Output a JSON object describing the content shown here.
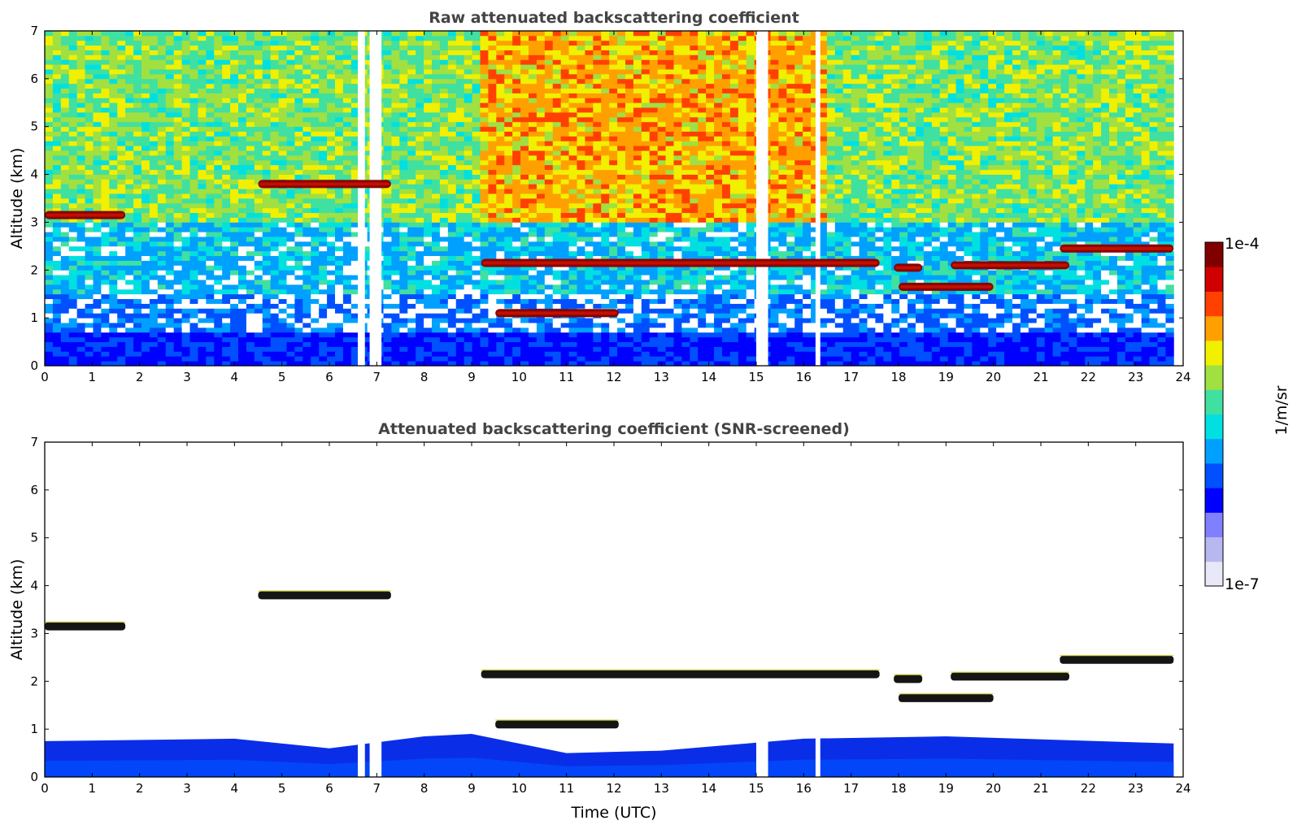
{
  "chart_data": [
    {
      "type": "heatmap",
      "title": "Raw attenuated backscattering coefficient",
      "xlabel": "",
      "ylabel": "Altitude (km)",
      "xlim": [
        0,
        24
      ],
      "ylim": [
        0,
        7
      ],
      "xticks": [
        "0",
        "1",
        "2",
        "3",
        "4",
        "5",
        "6",
        "7",
        "8",
        "9",
        "10",
        "11",
        "12",
        "13",
        "14",
        "15",
        "16",
        "17",
        "18",
        "19",
        "20",
        "21",
        "22",
        "23",
        "24"
      ],
      "yticks": [
        "0",
        "1",
        "2",
        "3",
        "4",
        "5",
        "6",
        "7"
      ],
      "data_end_hour": 23.8,
      "missing_time_gaps_hours": [
        [
          6.6,
          6.75
        ],
        [
          6.85,
          7.1
        ],
        [
          15.0,
          15.25
        ],
        [
          16.25,
          16.35
        ]
      ],
      "background_by_altitude": [
        {
          "alt_range_km": [
            0,
            0.7
          ],
          "level": "low",
          "color_class": "blue"
        },
        {
          "alt_range_km": [
            0.7,
            3.0
          ],
          "level": "low-medium",
          "color_class": "light blue / cyan"
        },
        {
          "alt_range_km": [
            3.0,
            7.0
          ],
          "level": "medium",
          "color_class": "green / yellow (noisy)"
        }
      ],
      "high_noise_period_hours": [
        9.2,
        16.5
      ],
      "cloud_layers": [
        {
          "t_start": 0.0,
          "t_end": 1.7,
          "alt_km": 3.15
        },
        {
          "t_start": 4.5,
          "t_end": 7.3,
          "alt_km": 3.8
        },
        {
          "t_start": 9.2,
          "t_end": 17.6,
          "alt_km": 2.15
        },
        {
          "t_start": 9.5,
          "t_end": 12.1,
          "alt_km": 1.1
        },
        {
          "t_start": 17.9,
          "t_end": 18.5,
          "alt_km": 2.05
        },
        {
          "t_start": 18.0,
          "t_end": 20.0,
          "alt_km": 1.65
        },
        {
          "t_start": 19.1,
          "t_end": 21.6,
          "alt_km": 2.1
        },
        {
          "t_start": 21.4,
          "t_end": 23.8,
          "alt_km": 2.45
        }
      ]
    },
    {
      "type": "heatmap",
      "title": "Attenuated backscattering coefficient (SNR-screened)",
      "xlabel": "Time (UTC)",
      "ylabel": "Altitude (km)",
      "xlim": [
        0,
        24
      ],
      "ylim": [
        0,
        7
      ],
      "xticks": [
        "0",
        "1",
        "2",
        "3",
        "4",
        "5",
        "6",
        "7",
        "8",
        "9",
        "10",
        "11",
        "12",
        "13",
        "14",
        "15",
        "16",
        "17",
        "18",
        "19",
        "20",
        "21",
        "22",
        "23",
        "24"
      ],
      "yticks": [
        "0",
        "1",
        "2",
        "3",
        "4",
        "5",
        "6",
        "7"
      ],
      "data_end_hour": 23.8,
      "boundary_layer_top_km": [
        {
          "t": 0,
          "alt": 0.75
        },
        {
          "t": 4,
          "alt": 0.8
        },
        {
          "t": 6,
          "alt": 0.6
        },
        {
          "t": 8,
          "alt": 0.85
        },
        {
          "t": 9,
          "alt": 0.9
        },
        {
          "t": 11,
          "alt": 0.5
        },
        {
          "t": 13,
          "alt": 0.55
        },
        {
          "t": 16,
          "alt": 0.8
        },
        {
          "t": 19,
          "alt": 0.85
        },
        {
          "t": 23.8,
          "alt": 0.7
        }
      ],
      "cloud_layers": [
        {
          "t_start": 0.0,
          "t_end": 1.7,
          "alt_km": 3.15
        },
        {
          "t_start": 4.5,
          "t_end": 7.3,
          "alt_km": 3.8
        },
        {
          "t_start": 9.2,
          "t_end": 17.6,
          "alt_km": 2.15
        },
        {
          "t_start": 9.5,
          "t_end": 12.1,
          "alt_km": 1.1
        },
        {
          "t_start": 17.9,
          "t_end": 18.5,
          "alt_km": 2.05
        },
        {
          "t_start": 18.0,
          "t_end": 20.0,
          "alt_km": 1.65
        },
        {
          "t_start": 19.1,
          "t_end": 21.6,
          "alt_km": 2.1
        },
        {
          "t_start": 21.4,
          "t_end": 23.8,
          "alt_km": 2.45
        }
      ]
    }
  ],
  "colorbar": {
    "label": "1/m/sr",
    "min_label": "1e-7",
    "max_label": "1e-4",
    "scale": "log",
    "colors": [
      "#e8e8f8",
      "#b8b8f0",
      "#8080ff",
      "#0000ff",
      "#0050ff",
      "#00a0ff",
      "#00e0e0",
      "#40e0a0",
      "#a0e040",
      "#f0f000",
      "#ffa000",
      "#ff4000",
      "#d00000",
      "#800000"
    ]
  }
}
